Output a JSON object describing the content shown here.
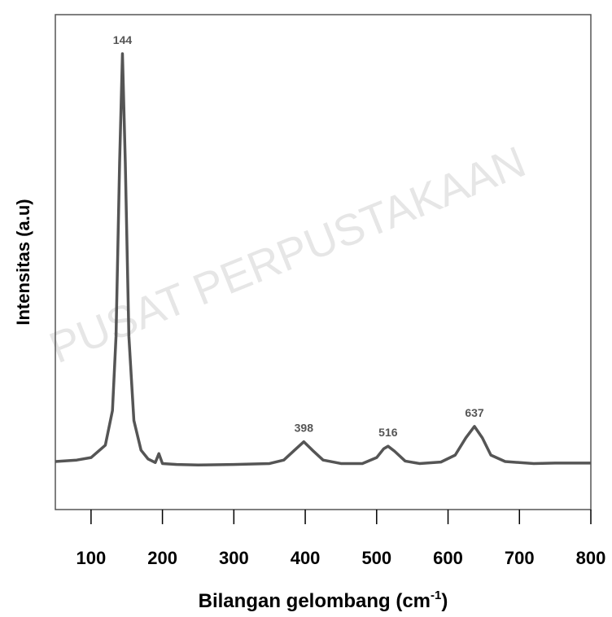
{
  "chart_data": {
    "type": "line",
    "watermark": "PUSAT PERPUSTAKAAN",
    "x_label": {
      "text": "Bilangan gelombang (cm",
      "sup": "-1",
      "end": ")"
    },
    "y_label": "Intensitas (a.u)",
    "xlim": [
      50,
      800
    ],
    "ylim": [
      0,
      100
    ],
    "xticks": [
      100,
      200,
      300,
      400,
      500,
      600,
      700,
      800
    ],
    "peaks": [
      144,
      398,
      516,
      637
    ],
    "x": [
      50,
      80,
      100,
      120,
      130,
      135,
      140,
      144,
      148,
      153,
      160,
      170,
      180,
      190,
      195,
      200,
      220,
      250,
      300,
      350,
      370,
      385,
      398,
      410,
      425,
      450,
      480,
      500,
      510,
      516,
      525,
      540,
      560,
      590,
      610,
      625,
      637,
      648,
      660,
      680,
      720,
      750,
      800
    ],
    "series": [
      {
        "color": "#555555",
        "values": [
          9.7,
          10,
          10.5,
          13,
          20,
          35,
          70,
          92.1,
          70,
          35,
          18,
          12,
          10.2,
          9.5,
          11.3,
          9.3,
          9.1,
          9.0,
          9.1,
          9.3,
          10,
          12,
          13.7,
          12,
          10,
          9.3,
          9.3,
          10.5,
          12.3,
          12.8,
          11.8,
          9.8,
          9.3,
          9.6,
          11,
          14.5,
          16.8,
          14.5,
          11,
          9.7,
          9.3,
          9.4,
          9.4
        ]
      }
    ]
  }
}
